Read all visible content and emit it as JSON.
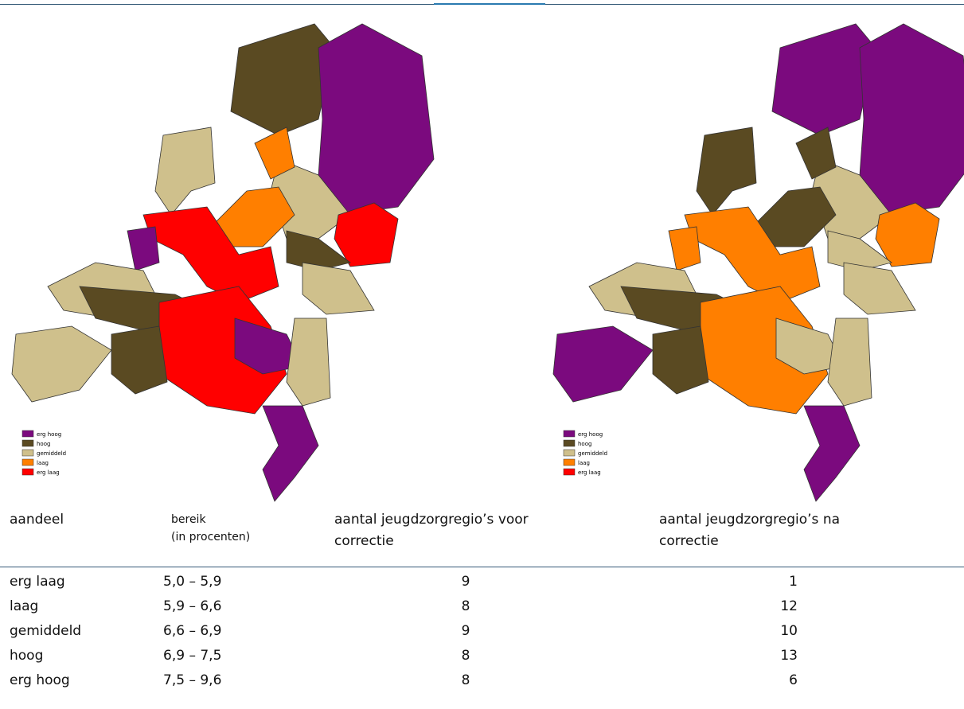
{
  "maps": [
    {
      "legend": [
        "erg hoog",
        "hoog",
        "gemiddeld",
        "laag",
        "erg laag"
      ]
    },
    {
      "legend": [
        "erg hoog",
        "hoog",
        "gemiddeld",
        "laag",
        "erg laag"
      ]
    }
  ],
  "table": {
    "header": [
      "aandeel",
      "bereik\n(in procenten)",
      "aantal jeugdzorgregio’s voor\ncorrectie",
      "aantal jeugdzorgregio’s na\ncorrectie"
    ],
    "rows": [
      [
        "erg laag",
        "5,0 – 5,9",
        9,
        1
      ],
      [
        "laag",
        "5,9 – 6,6",
        8,
        12
      ],
      [
        "gemiddeld",
        "6,6 – 6,9",
        9,
        10
      ],
      [
        "hoog",
        "6,9 – 7,5",
        8,
        13
      ],
      [
        "erg hoog",
        "7,5 – 9,6",
        8,
        6
      ]
    ]
  }
}
